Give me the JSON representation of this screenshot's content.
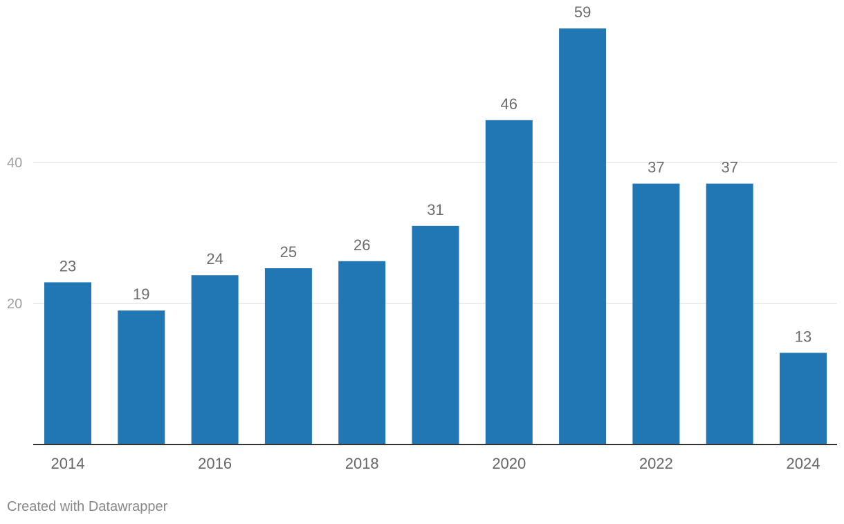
{
  "chart_data": {
    "type": "bar",
    "title": "",
    "xlabel": "",
    "ylabel": "",
    "categories": [
      "2014",
      "2015",
      "2016",
      "2017",
      "2018",
      "2019",
      "2020",
      "2021",
      "2022",
      "2023",
      "2024"
    ],
    "values": [
      23,
      19,
      24,
      25,
      26,
      31,
      46,
      59,
      37,
      37,
      13
    ],
    "x_tick_labels": [
      "2014",
      "2016",
      "2018",
      "2020",
      "2022",
      "2024"
    ],
    "y_ticks": [
      20,
      40
    ],
    "ylim": [
      0,
      60
    ],
    "grid": true,
    "bar_color": "#2077b4",
    "show_data_labels": true
  },
  "footer": {
    "credit": "Created with Datawrapper"
  }
}
